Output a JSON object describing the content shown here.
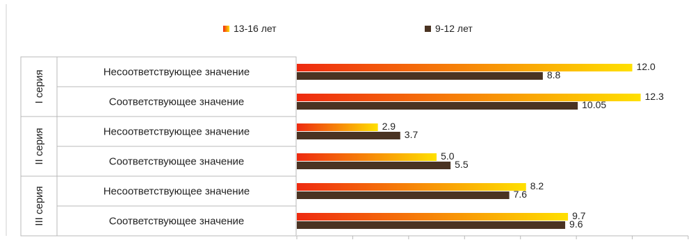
{
  "chart_data": {
    "type": "bar",
    "orientation": "horizontal",
    "groups": [
      {
        "label": "I серия",
        "categories": [
          "Несоответствующее значение",
          "Соответствующее значение"
        ]
      },
      {
        "label": "II серия",
        "categories": [
          "Несоответствующее значение",
          "Соответствующее значение"
        ]
      },
      {
        "label": "III серия",
        "categories": [
          "Несоответствующее значение",
          "Соответствующее значение"
        ]
      }
    ],
    "series": [
      {
        "name": "13-16 лет",
        "color": "#ee2a10",
        "color_end": "#ffe000",
        "values": [
          12.0,
          12.3,
          2.9,
          5.0,
          8.2,
          9.7
        ],
        "labels": [
          "12.0",
          "12.3",
          "2.9",
          "5.0",
          "8.2",
          "9.7"
        ]
      },
      {
        "name": "9-12 лет",
        "color": "#4a3322",
        "values": [
          8.8,
          10.05,
          3.7,
          5.5,
          7.6,
          9.6
        ],
        "labels": [
          "8.8",
          "10.05",
          "3.7",
          "5.5",
          "7.6",
          "9.6"
        ]
      }
    ],
    "xlim": [
      0,
      14
    ],
    "grid": false,
    "legend_position": "top"
  }
}
